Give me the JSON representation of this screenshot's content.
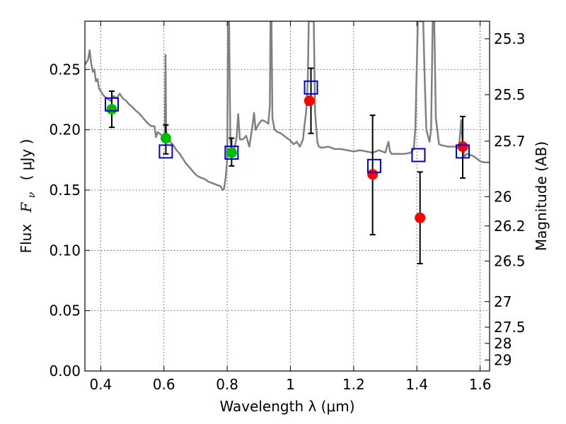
{
  "chart_data": {
    "type": "scatter",
    "xlabel": "Wavelength  λ (μm)",
    "ylabel_left_text": "Flux",
    "ylabel_left_symbol": "F",
    "ylabel_left_subscript": "ν",
    "ylabel_left_units": "( μJy )",
    "ylabel_right": "Magnitude (AB)",
    "xlim": [
      0.35,
      1.63
    ],
    "ylim": [
      0.0,
      0.29
    ],
    "grid": true,
    "x_ticks": [
      {
        "value": 0.4,
        "label": "0.4"
      },
      {
        "value": 0.6,
        "label": "0.6"
      },
      {
        "value": 0.8,
        "label": "0.8"
      },
      {
        "value": 1.0,
        "label": "1"
      },
      {
        "value": 1.2,
        "label": "1.2"
      },
      {
        "value": 1.4,
        "label": "1.4"
      },
      {
        "value": 1.6,
        "label": "1.6"
      }
    ],
    "y_ticks": [
      {
        "value": 0.0,
        "label": "0.00"
      },
      {
        "value": 0.05,
        "label": "0.05"
      },
      {
        "value": 0.1,
        "label": "0.10"
      },
      {
        "value": 0.15,
        "label": "0.15"
      },
      {
        "value": 0.2,
        "label": "0.20"
      },
      {
        "value": 0.25,
        "label": "0.25"
      }
    ],
    "right_ticks": [
      {
        "mag": 25.3,
        "label": "25.3"
      },
      {
        "mag": 25.5,
        "label": "25.5"
      },
      {
        "mag": 25.7,
        "label": "25.7"
      },
      {
        "mag": 26.0,
        "label": "26"
      },
      {
        "mag": 26.2,
        "label": "26.2"
      },
      {
        "mag": 26.5,
        "label": "26.5"
      },
      {
        "mag": 27.0,
        "label": "27"
      },
      {
        "mag": 27.5,
        "label": "27.5"
      },
      {
        "mag": 28.0,
        "label": "28"
      },
      {
        "mag": 29.0,
        "label": "29"
      }
    ],
    "series": [
      {
        "marker": "circle",
        "color": "#00bb00",
        "points": [
          {
            "x": 0.435,
            "y": 0.217
          },
          {
            "x": 0.606,
            "y": 0.193
          },
          {
            "x": 0.814,
            "y": 0.181
          }
        ]
      },
      {
        "marker": "circle",
        "color": "#ff0000",
        "points": [
          {
            "x": 1.06,
            "y": 0.224
          },
          {
            "x": 1.26,
            "y": 0.163
          },
          {
            "x": 1.41,
            "y": 0.127
          },
          {
            "x": 1.545,
            "y": 0.186
          }
        ]
      },
      {
        "marker": "square",
        "color": "#0000cc",
        "points": [
          {
            "x": 0.435,
            "y": 0.221
          },
          {
            "x": 0.606,
            "y": 0.182
          },
          {
            "x": 0.814,
            "y": 0.181
          },
          {
            "x": 1.065,
            "y": 0.235
          },
          {
            "x": 1.265,
            "y": 0.17
          },
          {
            "x": 1.405,
            "y": 0.179
          },
          {
            "x": 1.545,
            "y": 0.182
          }
        ]
      }
    ],
    "error_bars": [
      {
        "x": 0.435,
        "low": 0.202,
        "high": 0.232
      },
      {
        "x": 0.606,
        "low": 0.18,
        "high": 0.204
      },
      {
        "x": 0.814,
        "low": 0.17,
        "high": 0.193
      },
      {
        "x": 1.065,
        "low": 0.197,
        "high": 0.251
      },
      {
        "x": 1.26,
        "low": 0.113,
        "high": 0.212
      },
      {
        "x": 1.41,
        "low": 0.089,
        "high": 0.165
      },
      {
        "x": 1.545,
        "low": 0.16,
        "high": 0.211
      }
    ],
    "spectrum": {
      "color": "#808080",
      "points": [
        [
          0.35,
          0.254
        ],
        [
          0.36,
          0.258
        ],
        [
          0.365,
          0.266
        ],
        [
          0.37,
          0.255
        ],
        [
          0.375,
          0.248
        ],
        [
          0.38,
          0.25
        ],
        [
          0.385,
          0.24
        ],
        [
          0.39,
          0.242
        ],
        [
          0.395,
          0.234
        ],
        [
          0.4,
          0.232
        ],
        [
          0.41,
          0.228
        ],
        [
          0.42,
          0.226
        ],
        [
          0.43,
          0.224
        ],
        [
          0.44,
          0.228
        ],
        [
          0.45,
          0.226
        ],
        [
          0.46,
          0.23
        ],
        [
          0.47,
          0.226
        ],
        [
          0.48,
          0.224
        ],
        [
          0.49,
          0.221
        ],
        [
          0.5,
          0.219
        ],
        [
          0.51,
          0.216
        ],
        [
          0.52,
          0.214
        ],
        [
          0.53,
          0.211
        ],
        [
          0.54,
          0.208
        ],
        [
          0.55,
          0.205
        ],
        [
          0.56,
          0.203
        ],
        [
          0.57,
          0.203
        ],
        [
          0.575,
          0.194
        ],
        [
          0.58,
          0.198
        ],
        [
          0.59,
          0.196
        ],
        [
          0.6,
          0.194
        ],
        [
          0.603,
          0.2
        ],
        [
          0.605,
          0.262
        ],
        [
          0.607,
          0.2
        ],
        [
          0.61,
          0.192
        ],
        [
          0.62,
          0.19
        ],
        [
          0.63,
          0.187
        ],
        [
          0.64,
          0.183
        ],
        [
          0.65,
          0.18
        ],
        [
          0.66,
          0.176
        ],
        [
          0.67,
          0.172
        ],
        [
          0.68,
          0.169
        ],
        [
          0.69,
          0.166
        ],
        [
          0.7,
          0.163
        ],
        [
          0.71,
          0.161
        ],
        [
          0.72,
          0.16
        ],
        [
          0.73,
          0.159
        ],
        [
          0.74,
          0.157
        ],
        [
          0.75,
          0.156
        ],
        [
          0.76,
          0.155
        ],
        [
          0.77,
          0.154
        ],
        [
          0.78,
          0.153
        ],
        [
          0.785,
          0.15
        ],
        [
          0.79,
          0.151
        ],
        [
          0.795,
          0.16
        ],
        [
          0.8,
          0.175
        ],
        [
          0.803,
          0.29
        ],
        [
          0.806,
          0.29
        ],
        [
          0.81,
          0.19
        ],
        [
          0.815,
          0.183
        ],
        [
          0.82,
          0.18
        ],
        [
          0.83,
          0.194
        ],
        [
          0.835,
          0.213
        ],
        [
          0.84,
          0.192
        ],
        [
          0.85,
          0.192
        ],
        [
          0.86,
          0.195
        ],
        [
          0.87,
          0.186
        ],
        [
          0.88,
          0.203
        ],
        [
          0.885,
          0.214
        ],
        [
          0.89,
          0.2
        ],
        [
          0.9,
          0.205
        ],
        [
          0.91,
          0.208
        ],
        [
          0.92,
          0.207
        ],
        [
          0.93,
          0.205
        ],
        [
          0.935,
          0.22
        ],
        [
          0.937,
          0.29
        ],
        [
          0.94,
          0.29
        ],
        [
          0.943,
          0.21
        ],
        [
          0.95,
          0.2
        ],
        [
          0.96,
          0.198
        ],
        [
          0.97,
          0.197
        ],
        [
          0.98,
          0.195
        ],
        [
          0.99,
          0.193
        ],
        [
          1.0,
          0.191
        ],
        [
          1.01,
          0.188
        ],
        [
          1.02,
          0.19
        ],
        [
          1.03,
          0.186
        ],
        [
          1.04,
          0.192
        ],
        [
          1.045,
          0.205
        ],
        [
          1.05,
          0.215
        ],
        [
          1.055,
          0.24
        ],
        [
          1.058,
          0.29
        ],
        [
          1.064,
          0.29
        ],
        [
          1.07,
          0.29
        ],
        [
          1.074,
          0.29
        ],
        [
          1.078,
          0.215
        ],
        [
          1.085,
          0.19
        ],
        [
          1.09,
          0.186
        ],
        [
          1.1,
          0.185
        ],
        [
          1.12,
          0.186
        ],
        [
          1.14,
          0.184
        ],
        [
          1.16,
          0.184
        ],
        [
          1.18,
          0.183
        ],
        [
          1.2,
          0.182
        ],
        [
          1.22,
          0.183
        ],
        [
          1.24,
          0.182
        ],
        [
          1.26,
          0.181
        ],
        [
          1.28,
          0.183
        ],
        [
          1.3,
          0.181
        ],
        [
          1.31,
          0.19
        ],
        [
          1.315,
          0.182
        ],
        [
          1.32,
          0.18
        ],
        [
          1.34,
          0.18
        ],
        [
          1.36,
          0.18
        ],
        [
          1.38,
          0.181
        ],
        [
          1.39,
          0.184
        ],
        [
          1.395,
          0.2
        ],
        [
          1.4,
          0.255
        ],
        [
          1.403,
          0.29
        ],
        [
          1.41,
          0.29
        ],
        [
          1.42,
          0.29
        ],
        [
          1.425,
          0.24
        ],
        [
          1.43,
          0.2
        ],
        [
          1.44,
          0.19
        ],
        [
          1.445,
          0.2
        ],
        [
          1.45,
          0.29
        ],
        [
          1.455,
          0.29
        ],
        [
          1.46,
          0.21
        ],
        [
          1.47,
          0.188
        ],
        [
          1.48,
          0.187
        ],
        [
          1.5,
          0.186
        ],
        [
          1.52,
          0.186
        ],
        [
          1.53,
          0.185
        ],
        [
          1.535,
          0.19
        ],
        [
          1.54,
          0.208
        ],
        [
          1.545,
          0.188
        ],
        [
          1.55,
          0.178
        ],
        [
          1.56,
          0.18
        ],
        [
          1.57,
          0.179
        ],
        [
          1.58,
          0.178
        ],
        [
          1.6,
          0.174
        ],
        [
          1.61,
          0.173
        ],
        [
          1.62,
          0.173
        ],
        [
          1.63,
          0.173
        ]
      ]
    }
  }
}
